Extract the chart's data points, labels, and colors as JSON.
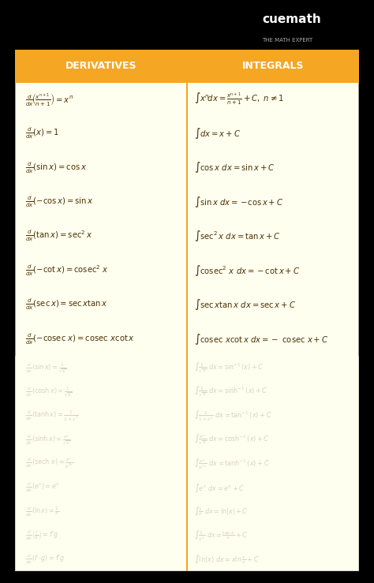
{
  "bg_color": "#000000",
  "header_bg": "#F5A623",
  "content_bg": "#FFFFF0",
  "header_text_color": "#FFFFFF",
  "content_text_color": "#4A3000",
  "divider_color": "#F5A623",
  "header_left": "DERIVATIVES",
  "header_right": "INTEGRALS",
  "figsize": [
    4.74,
    7.39
  ],
  "dpi": 100,
  "logo_text": "cuemath",
  "logo_subtext": "THE MATH EXPERT"
}
